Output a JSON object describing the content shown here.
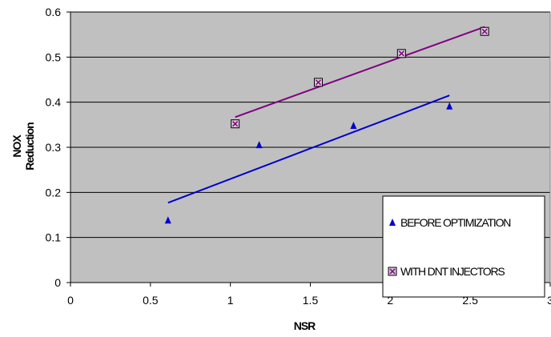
{
  "chart_data": {
    "type": "scatter",
    "title": "",
    "xlabel": "NSR",
    "ylabel_lines": [
      "NOX",
      "Reduction"
    ],
    "xlim": [
      0,
      3
    ],
    "ylim": [
      0,
      0.6
    ],
    "x_ticks": [
      "0",
      "0.5",
      "1",
      "1.5",
      "2",
      "2.5",
      "3"
    ],
    "y_ticks": [
      "0",
      "0.1",
      "0.2",
      "0.3",
      "0.4",
      "0.5",
      "0.6"
    ],
    "plot_background": "#c0c0c0",
    "grid": "horizontal",
    "legend_position": "bottom-right",
    "series": [
      {
        "name": "BEFORE OPTIMIZATION",
        "marker": "triangle",
        "color": "#0000cc",
        "x": [
          0.61,
          1.18,
          1.77,
          2.37
        ],
        "y": [
          0.138,
          0.305,
          0.348,
          0.391
        ],
        "trendline": {
          "x": [
            0.61,
            2.37
          ],
          "y": [
            0.177,
            0.415
          ]
        }
      },
      {
        "name": "WITH DNT INJECTORS",
        "marker": "boxed-x",
        "color": "#800080",
        "x": [
          1.03,
          1.55,
          2.07,
          2.59
        ],
        "y": [
          0.352,
          0.444,
          0.508,
          0.557
        ],
        "trendline": {
          "x": [
            1.03,
            2.59
          ],
          "y": [
            0.367,
            0.567
          ]
        }
      }
    ]
  }
}
